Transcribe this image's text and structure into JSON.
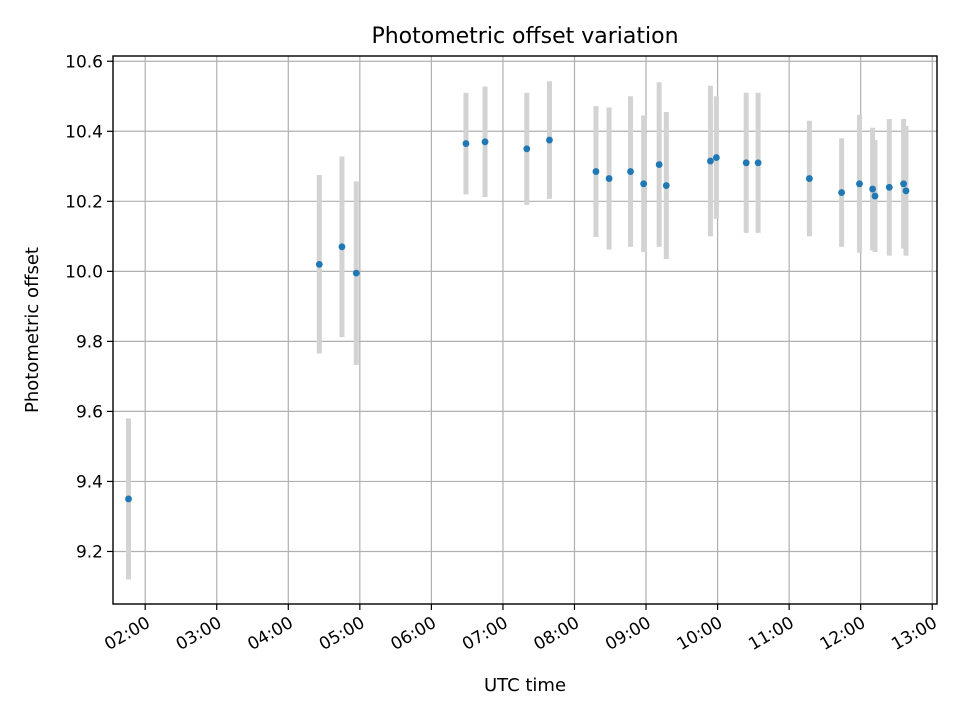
{
  "chart_data": {
    "type": "scatter",
    "title": "Photometric offset variation",
    "xlabel": "UTC time",
    "ylabel": "Photometric offset",
    "x_axis": "time",
    "xlim": [
      "01:33",
      "13:04"
    ],
    "ylim": [
      9.05,
      10.615
    ],
    "x_ticks": [
      "02:00",
      "03:00",
      "04:00",
      "05:00",
      "06:00",
      "07:00",
      "08:00",
      "09:00",
      "10:00",
      "11:00",
      "12:00",
      "13:00"
    ],
    "y_ticks": [
      9.2,
      9.4,
      9.6,
      9.8,
      10.0,
      10.2,
      10.4,
      10.6
    ],
    "grid": true,
    "colors": {
      "marker": "#1f77b4",
      "errorbar": "#d3d3d3"
    },
    "series": [
      {
        "points": [
          {
            "x": "01:46",
            "y": 9.35,
            "yerr": 0.23
          },
          {
            "x": "04:26",
            "y": 10.02,
            "yerr": 0.255
          },
          {
            "x": "04:45",
            "y": 10.07,
            "yerr": 0.258
          },
          {
            "x": "04:57",
            "y": 9.995,
            "yerr": 0.262
          },
          {
            "x": "06:29",
            "y": 10.365,
            "yerr": 0.145
          },
          {
            "x": "06:45",
            "y": 10.37,
            "yerr": 0.158
          },
          {
            "x": "07:20",
            "y": 10.35,
            "yerr": 0.16
          },
          {
            "x": "07:39",
            "y": 10.375,
            "yerr": 0.168
          },
          {
            "x": "08:18",
            "y": 10.285,
            "yerr": 0.187
          },
          {
            "x": "08:29",
            "y": 10.265,
            "yerr": 0.203
          },
          {
            "x": "08:47",
            "y": 10.285,
            "yerr": 0.215
          },
          {
            "x": "08:58",
            "y": 10.25,
            "yerr": 0.195
          },
          {
            "x": "09:11",
            "y": 10.305,
            "yerr": 0.235
          },
          {
            "x": "09:17",
            "y": 10.245,
            "yerr": 0.21
          },
          {
            "x": "09:54",
            "y": 10.315,
            "yerr": 0.215
          },
          {
            "x": "09:59",
            "y": 10.325,
            "yerr": 0.175
          },
          {
            "x": "10:24",
            "y": 10.31,
            "yerr": 0.2
          },
          {
            "x": "10:34",
            "y": 10.31,
            "yerr": 0.2
          },
          {
            "x": "11:17",
            "y": 10.265,
            "yerr": 0.165
          },
          {
            "x": "11:44",
            "y": 10.225,
            "yerr": 0.155
          },
          {
            "x": "11:59",
            "y": 10.25,
            "yerr": 0.197
          },
          {
            "x": "12:10",
            "y": 10.235,
            "yerr": 0.175
          },
          {
            "x": "12:12",
            "y": 10.215,
            "yerr": 0.16
          },
          {
            "x": "12:24",
            "y": 10.24,
            "yerr": 0.195
          },
          {
            "x": "12:36",
            "y": 10.25,
            "yerr": 0.185
          },
          {
            "x": "12:38",
            "y": 10.23,
            "yerr": 0.185
          }
        ]
      }
    ]
  }
}
